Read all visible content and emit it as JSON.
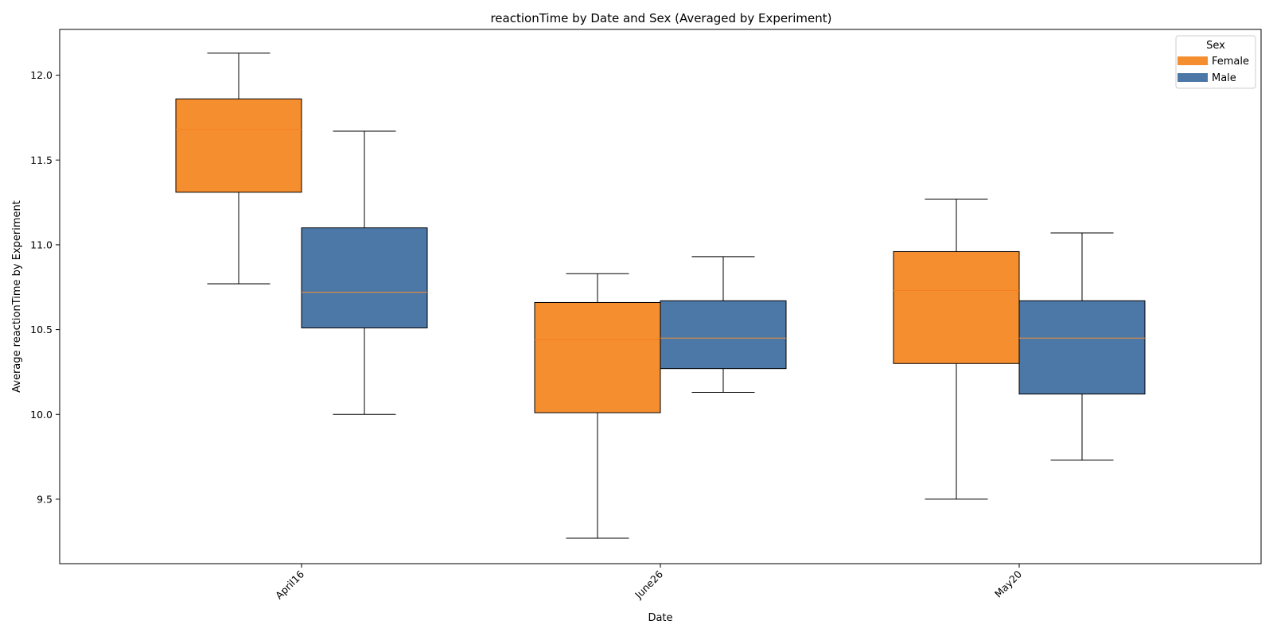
{
  "chart_data": {
    "type": "boxplot",
    "title": "reactionTime by Date and Sex (Averaged by Experiment)",
    "xlabel": "Date",
    "ylabel": "Average reactionTime by Experiment",
    "categories": [
      "April16",
      "June26",
      "May20"
    ],
    "ylim": [
      9.12,
      12.27
    ],
    "yticks": [
      9.5,
      10.0,
      10.5,
      11.0,
      11.5,
      12.0
    ],
    "ytick_labels": [
      "9.5",
      "10.0",
      "10.5",
      "11.0",
      "11.5",
      "12.0"
    ],
    "legend": {
      "title": "Sex",
      "position": "top-right"
    },
    "series": [
      {
        "name": "Female",
        "color": "#f58e2f",
        "median_color": "#f47f20",
        "boxes": [
          {
            "whisker_low": 10.77,
            "q1": 11.31,
            "median": 11.68,
            "q3": 11.86,
            "whisker_high": 12.13
          },
          {
            "whisker_low": 9.27,
            "q1": 10.01,
            "median": 10.44,
            "q3": 10.66,
            "whisker_high": 10.83
          },
          {
            "whisker_low": 9.5,
            "q1": 10.3,
            "median": 10.73,
            "q3": 10.96,
            "whisker_high": 11.27
          }
        ]
      },
      {
        "name": "Male",
        "color": "#4c78a8",
        "median_color": "#f58e2f",
        "boxes": [
          {
            "whisker_low": 10.0,
            "q1": 10.51,
            "median": 10.72,
            "q3": 11.1,
            "whisker_high": 11.67
          },
          {
            "whisker_low": 10.13,
            "q1": 10.27,
            "median": 10.45,
            "q3": 10.67,
            "whisker_high": 10.93
          },
          {
            "whisker_low": 9.73,
            "q1": 10.12,
            "median": 10.45,
            "q3": 10.67,
            "whisker_high": 11.07
          }
        ]
      }
    ]
  }
}
